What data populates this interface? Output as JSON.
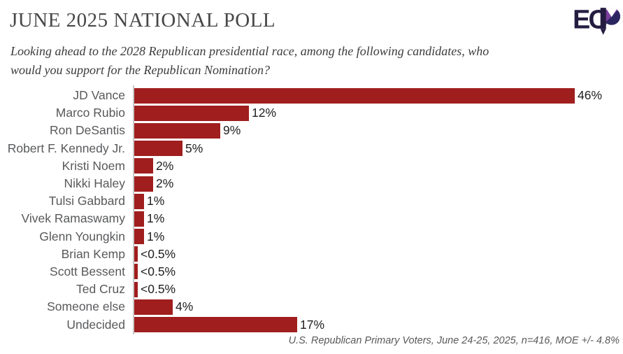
{
  "header": {
    "title": "JUNE 2025 NATIONAL POLL",
    "subtitle_line1": "Looking ahead to the 2028 Republican presidential race, among the following candidates, who",
    "subtitle_line2": "would you support for the Republican Nomination?"
  },
  "logo": {
    "name": "ECP"
  },
  "colors": {
    "bar": "#a01e1e",
    "axis": "#c8c8c8",
    "logo_dark": "#251d41",
    "logo_purple": "#7b3f9d",
    "logo_blue": "#2b2560",
    "label_gray": "#58595b"
  },
  "chart_data": {
    "type": "bar",
    "orientation": "horizontal",
    "title": "JUNE 2025 NATIONAL POLL",
    "subtitle": "Looking ahead to the 2028 Republican presidential race, among the following candidates, who would you support for the Republican Nomination?",
    "categories": [
      "JD Vance",
      "Marco Rubio",
      "Ron DeSantis",
      "Robert F. Kennedy Jr.",
      "Kristi Noem",
      "Nikki Haley",
      "Tulsi Gabbard",
      "Vivek Ramaswamy",
      "Glenn Youngkin",
      "Brian Kemp",
      "Scott Bessent",
      "Ted Cruz",
      "Someone else",
      "Undecided"
    ],
    "values": [
      46,
      12,
      9,
      5,
      2,
      2,
      1,
      1,
      1,
      0.4,
      0.4,
      0.4,
      4,
      17
    ],
    "value_labels": [
      "46%",
      "12%",
      "9%",
      "5%",
      "2%",
      "2%",
      "1%",
      "1%",
      "1%",
      "<0.5%",
      "<0.5%",
      "<0.5%",
      "4%",
      "17%"
    ],
    "xlim": [
      0,
      50
    ],
    "grid": false,
    "legend": false,
    "bar_color": "#a01e1e",
    "footnote": "U.S. Republican Primary Voters, June 24-25, 2025, n=416, MOE +/- 4.8%"
  }
}
